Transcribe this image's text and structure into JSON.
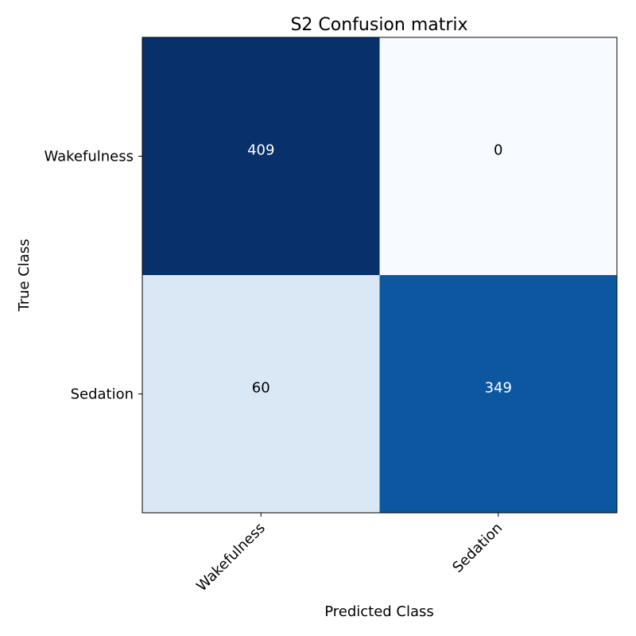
{
  "chart_data": {
    "type": "heatmap",
    "title": "S2 Confusion matrix",
    "xlabel": "Predicted Class",
    "ylabel": "True Class",
    "x_categories": [
      "Wakefulness",
      "Sedation"
    ],
    "y_categories": [
      "Wakefulness",
      "Sedation"
    ],
    "values": [
      [
        409,
        0
      ],
      [
        60,
        349
      ]
    ],
    "colormap": "Blues",
    "color_range": [
      0,
      409
    ],
    "text_colors": {
      "dark_cell": "#ffffff",
      "light_cell": "#000000"
    },
    "x_tick_rotation_deg": 45,
    "grid": false
  }
}
